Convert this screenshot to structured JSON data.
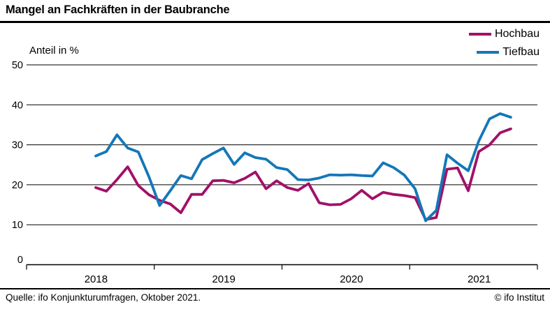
{
  "header": {
    "title": "Mangel an Fachkräften in der Baubranche"
  },
  "y_axis": {
    "unit_label": "Anteil in %",
    "ticks": [
      0,
      10,
      20,
      30,
      40,
      50
    ]
  },
  "x_axis": {
    "year_labels": [
      "2018",
      "2019",
      "2020",
      "2021"
    ]
  },
  "legend": {
    "items": [
      {
        "label": "Hochbau",
        "color": "#a21068"
      },
      {
        "label": "Tiefbau",
        "color": "#1477b8"
      }
    ]
  },
  "footer": {
    "source": "Quelle: ifo Konjunkturumfragen, Oktober 2021.",
    "copyright": "© ifo Institut"
  },
  "chart_data": {
    "type": "line",
    "title": "Mangel an Fachkräften in der Baubranche",
    "ylabel": "Anteil in %",
    "ylim": [
      0,
      50
    ],
    "y_ticks": [
      0,
      10,
      20,
      30,
      40,
      50
    ],
    "grid": "horizontal",
    "legend_position": "top-right",
    "x": [
      "2018-07",
      "2018-08",
      "2018-09",
      "2018-10",
      "2018-11",
      "2018-12",
      "2019-01",
      "2019-02",
      "2019-03",
      "2019-04",
      "2019-05",
      "2019-06",
      "2019-07",
      "2019-08",
      "2019-09",
      "2019-10",
      "2019-11",
      "2019-12",
      "2020-01",
      "2020-02",
      "2020-03",
      "2020-04",
      "2020-05",
      "2020-06",
      "2020-07",
      "2020-08",
      "2020-09",
      "2020-10",
      "2020-11",
      "2020-12",
      "2021-01",
      "2021-02",
      "2021-03",
      "2021-04",
      "2021-05",
      "2021-06",
      "2021-07",
      "2021-08",
      "2021-09",
      "2021-10"
    ],
    "series": [
      {
        "name": "Hochbau",
        "color": "#a21068",
        "values": [
          19.3,
          18.4,
          21.3,
          24.5,
          19.8,
          17.5,
          16.1,
          15.2,
          13.0,
          17.6,
          17.6,
          21.0,
          21.1,
          20.5,
          21.6,
          23.2,
          19.0,
          21.0,
          19.3,
          18.6,
          20.3,
          15.5,
          15.0,
          15.1,
          16.5,
          18.6,
          16.5,
          18.1,
          17.6,
          17.3,
          16.8,
          11.3,
          11.8,
          23.9,
          24.2,
          18.5,
          28.3,
          30.0,
          33.0,
          34.0
        ]
      },
      {
        "name": "Tiefbau",
        "color": "#1477b8",
        "values": [
          27.2,
          28.3,
          32.5,
          29.2,
          28.2,
          22.0,
          14.8,
          18.5,
          22.3,
          21.5,
          26.3,
          27.8,
          29.2,
          25.1,
          28.0,
          26.8,
          26.4,
          24.3,
          23.8,
          21.3,
          21.2,
          21.7,
          22.5,
          22.4,
          22.5,
          22.3,
          22.2,
          25.5,
          24.3,
          22.4,
          19.0,
          11.0,
          13.6,
          27.5,
          25.4,
          23.5,
          31.0,
          36.5,
          37.8,
          36.9
        ]
      }
    ]
  }
}
